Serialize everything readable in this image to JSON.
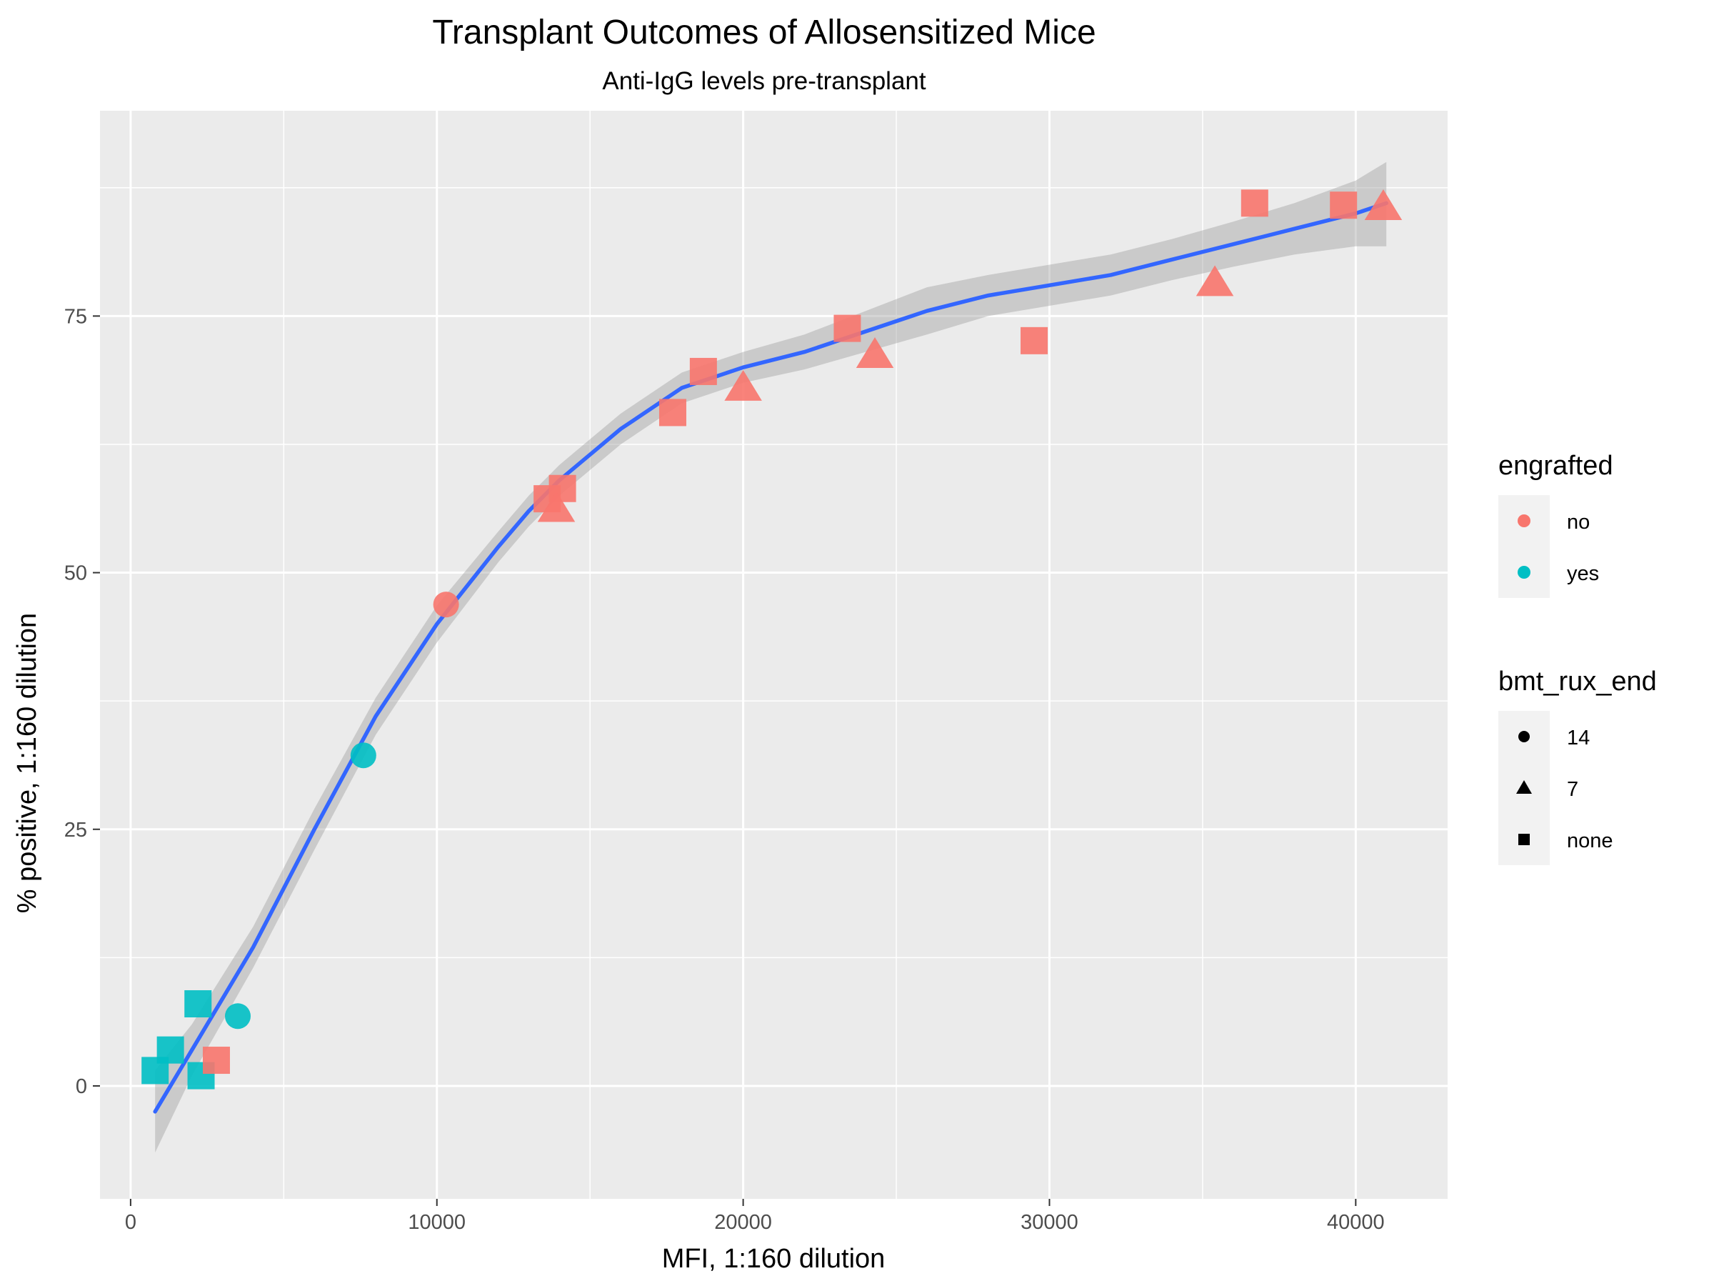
{
  "chart_data": {
    "type": "scatter",
    "title": "Transplant Outcomes of Allosensitized Mice",
    "subtitle": "Anti-IgG levels pre-transplant",
    "xlabel": "MFI, 1:160 dilution",
    "ylabel": "% positive, 1:160 dilution",
    "xlim": [
      -1000,
      43000
    ],
    "ylim": [
      -11,
      95
    ],
    "x_ticks": [
      0,
      10000,
      20000,
      30000,
      40000
    ],
    "x_tick_labels": [
      "0",
      "10000",
      "20000",
      "30000",
      "40000"
    ],
    "y_ticks": [
      0,
      25,
      50,
      75
    ],
    "y_tick_labels": [
      "0",
      "25",
      "50",
      "75"
    ],
    "grid": true,
    "legend_position": "right",
    "colors": {
      "no": "#F8766D",
      "yes": "#00BFC4",
      "smooth": "#3366FF",
      "band": "#999999"
    },
    "legends": [
      {
        "title": "engrafted",
        "kind": "color",
        "items": [
          {
            "label": "no",
            "color": "#F8766D"
          },
          {
            "label": "yes",
            "color": "#00BFC4"
          }
        ]
      },
      {
        "title": "bmt_rux_end",
        "kind": "shape",
        "items": [
          {
            "label": "14",
            "shape": "circle"
          },
          {
            "label": "7",
            "shape": "triangle"
          },
          {
            "label": "none",
            "shape": "square"
          }
        ]
      }
    ],
    "points": [
      {
        "x": 800,
        "y": 1.5,
        "engrafted": "yes",
        "bmt_rux_end": "none"
      },
      {
        "x": 1300,
        "y": 3.5,
        "engrafted": "yes",
        "bmt_rux_end": "none"
      },
      {
        "x": 2200,
        "y": 8.0,
        "engrafted": "yes",
        "bmt_rux_end": "none"
      },
      {
        "x": 2300,
        "y": 1.0,
        "engrafted": "yes",
        "bmt_rux_end": "none"
      },
      {
        "x": 2800,
        "y": 2.5,
        "engrafted": "no",
        "bmt_rux_end": "none"
      },
      {
        "x": 3500,
        "y": 6.8,
        "engrafted": "yes",
        "bmt_rux_end": "14"
      },
      {
        "x": 7600,
        "y": 32.2,
        "engrafted": "yes",
        "bmt_rux_end": "14"
      },
      {
        "x": 10300,
        "y": 46.9,
        "engrafted": "no",
        "bmt_rux_end": "14"
      },
      {
        "x": 13600,
        "y": 57.2,
        "engrafted": "no",
        "bmt_rux_end": "none"
      },
      {
        "x": 14100,
        "y": 58.2,
        "engrafted": "no",
        "bmt_rux_end": "none"
      },
      {
        "x": 13900,
        "y": 56.2,
        "engrafted": "no",
        "bmt_rux_end": "7"
      },
      {
        "x": 17700,
        "y": 65.6,
        "engrafted": "no",
        "bmt_rux_end": "none"
      },
      {
        "x": 18700,
        "y": 69.6,
        "engrafted": "no",
        "bmt_rux_end": "none"
      },
      {
        "x": 20000,
        "y": 68.0,
        "engrafted": "no",
        "bmt_rux_end": "7"
      },
      {
        "x": 23400,
        "y": 73.8,
        "engrafted": "no",
        "bmt_rux_end": "none"
      },
      {
        "x": 24300,
        "y": 71.2,
        "engrafted": "no",
        "bmt_rux_end": "7"
      },
      {
        "x": 29500,
        "y": 72.6,
        "engrafted": "no",
        "bmt_rux_end": "none"
      },
      {
        "x": 35400,
        "y": 78.2,
        "engrafted": "no",
        "bmt_rux_end": "7"
      },
      {
        "x": 36700,
        "y": 86.0,
        "engrafted": "no",
        "bmt_rux_end": "none"
      },
      {
        "x": 39600,
        "y": 85.8,
        "engrafted": "no",
        "bmt_rux_end": "none"
      },
      {
        "x": 40900,
        "y": 85.6,
        "engrafted": "no",
        "bmt_rux_end": "7"
      }
    ],
    "smooth": {
      "x": [
        800,
        2000,
        4000,
        6000,
        8000,
        10000,
        12000,
        13000,
        14000,
        15000,
        16000,
        18000,
        19000,
        20000,
        22000,
        24000,
        26000,
        28000,
        30000,
        32000,
        34000,
        36000,
        38000,
        40000,
        41000
      ],
      "y": [
        -2.5,
        3.5,
        13.5,
        25,
        36,
        45,
        52.5,
        56,
        59,
        61.5,
        64,
        68,
        69,
        70,
        71.5,
        73.5,
        75.5,
        77,
        78,
        79,
        80.5,
        82,
        83.5,
        85,
        86
      ],
      "lower": [
        -6.5,
        1.0,
        11.5,
        23,
        34.2,
        43.2,
        51,
        54.5,
        57.5,
        60,
        62.5,
        66.5,
        67.5,
        68.5,
        69.8,
        71.5,
        73.2,
        75,
        76,
        77,
        78.5,
        79.8,
        81,
        81.8,
        81.8
      ],
      "upper": [
        1.5,
        6.0,
        15.5,
        27,
        37.8,
        46.8,
        54,
        57.5,
        60.5,
        63,
        65.5,
        69.5,
        70.5,
        71.5,
        73.2,
        75.5,
        77.8,
        79,
        80,
        81,
        82.5,
        84.2,
        86,
        88.2,
        90
      ]
    }
  }
}
